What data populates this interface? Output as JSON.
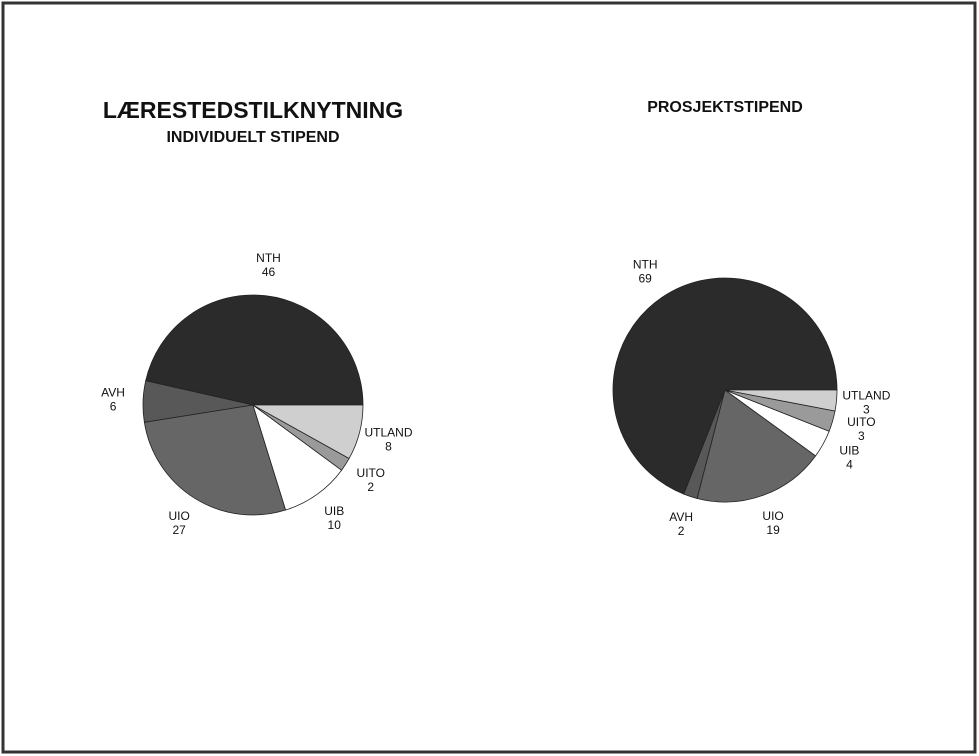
{
  "chart_data": [
    {
      "type": "pie",
      "title": "LÆRESTEDSTILKNYTNING",
      "subtitle": "INDIVIDUELT STIPEND",
      "categories": [
        "NTH",
        "AVH",
        "UIO",
        "UIB",
        "UITO",
        "UTLAND"
      ],
      "values": [
        46,
        6,
        27,
        10,
        2,
        8
      ],
      "colors": [
        "#2b2b2b",
        "#585858",
        "#666666",
        "#ffffff",
        "#9a9a9a",
        "#cfcfcf"
      ]
    },
    {
      "type": "pie",
      "title": "PROSJEKTSTIPEND",
      "categories": [
        "NTH",
        "AVH",
        "UIO",
        "UIB",
        "UITO",
        "UTLAND"
      ],
      "values": [
        69,
        2,
        19,
        4,
        3,
        3
      ],
      "colors": [
        "#2b2b2b",
        "#585858",
        "#666666",
        "#ffffff",
        "#9a9a9a",
        "#cfcfcf"
      ]
    }
  ]
}
